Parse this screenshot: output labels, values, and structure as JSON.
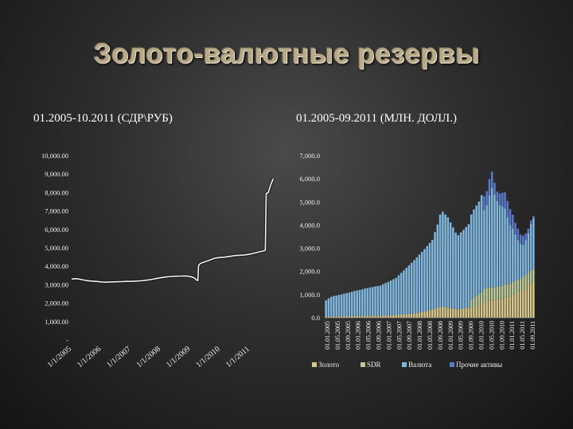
{
  "page": {
    "title": "Золото-валютные резервы"
  },
  "chart_data": [
    {
      "type": "line",
      "title": "01.2005-10.2011 (СДР\\РУБ)",
      "ylim": [
        0,
        10000
      ],
      "y_ticks": [
        "-",
        "1,000.00",
        "2,000.00",
        "3,000.00",
        "4,000.00",
        "5,000.00",
        "6,000.00",
        "7,000.00",
        "8,000.00",
        "9,000.00",
        "10,000.00"
      ],
      "x_tick_labels": [
        "1/1/2005",
        "1/1/2006",
        "1/1/2007",
        "1/1/2008",
        "1/1/2009",
        "1/1/2010",
        "1/1/2011"
      ],
      "x_range": [
        "2005-01-01",
        "2011-10-31"
      ],
      "color": "#f2f2f2",
      "points": [
        [
          "2005-01-01",
          3310
        ],
        [
          "2005-03-01",
          3330
        ],
        [
          "2005-05-01",
          3280
        ],
        [
          "2005-07-01",
          3230
        ],
        [
          "2005-09-01",
          3200
        ],
        [
          "2005-11-01",
          3180
        ],
        [
          "2006-01-01",
          3150
        ],
        [
          "2006-03-01",
          3140
        ],
        [
          "2006-05-01",
          3150
        ],
        [
          "2006-07-01",
          3160
        ],
        [
          "2006-09-01",
          3170
        ],
        [
          "2006-11-01",
          3180
        ],
        [
          "2007-01-01",
          3180
        ],
        [
          "2007-03-01",
          3200
        ],
        [
          "2007-05-01",
          3210
        ],
        [
          "2007-07-01",
          3240
        ],
        [
          "2007-09-01",
          3280
        ],
        [
          "2007-11-01",
          3330
        ],
        [
          "2008-01-01",
          3380
        ],
        [
          "2008-03-01",
          3420
        ],
        [
          "2008-05-01",
          3450
        ],
        [
          "2008-07-01",
          3460
        ],
        [
          "2008-09-01",
          3470
        ],
        [
          "2008-11-01",
          3480
        ],
        [
          "2009-01-01",
          3440
        ],
        [
          "2009-02-15",
          3380
        ],
        [
          "2009-03-15",
          3260
        ],
        [
          "2009-04-01",
          3230
        ],
        [
          "2009-04-10",
          4050
        ],
        [
          "2009-05-01",
          4150
        ],
        [
          "2009-07-01",
          4250
        ],
        [
          "2009-09-01",
          4350
        ],
        [
          "2009-11-01",
          4450
        ],
        [
          "2010-01-01",
          4480
        ],
        [
          "2010-03-01",
          4500
        ],
        [
          "2010-05-01",
          4540
        ],
        [
          "2010-07-01",
          4580
        ],
        [
          "2010-09-01",
          4600
        ],
        [
          "2010-11-01",
          4620
        ],
        [
          "2011-01-01",
          4660
        ],
        [
          "2011-03-01",
          4720
        ],
        [
          "2011-05-01",
          4790
        ],
        [
          "2011-06-15",
          4830
        ],
        [
          "2011-07-10",
          4870
        ],
        [
          "2011-07-20",
          7950
        ],
        [
          "2011-08-15",
          8000
        ],
        [
          "2011-09-15",
          8450
        ],
        [
          "2011-10-15",
          8750
        ]
      ]
    },
    {
      "type": "bar",
      "stacked": true,
      "title": "01.2005-09.2011 (МЛН. ДОЛЛ.)",
      "ylim": [
        0,
        7000
      ],
      "y_ticks": [
        "0.0",
        "1,000.0",
        "2,000.0",
        "3,000.0",
        "4,000.0",
        "5,000.0",
        "6,000.0",
        "7,000.0"
      ],
      "x_tick_labels": [
        "01.01.2005",
        "01.05.2005",
        "01.09.2005",
        "01.01.2006",
        "01.05.2006",
        "01.09.2006",
        "01.01.2007",
        "01.05.2007",
        "01.09.2007",
        "01.01.2008",
        "01.05.2008",
        "01.09.2008",
        "01.01.2009",
        "01.05.2009",
        "01.09.2009",
        "01.01.2010",
        "01.05.2010",
        "01.09.2010",
        "01.01.2011",
        "01.05.2011",
        "01.09.2011"
      ],
      "legend": [
        "Золото",
        "SDR",
        "Валюта",
        "Прочие активы"
      ],
      "legend_position": "bottom",
      "colors": {
        "gold": "#d7c78a",
        "sdr": "#bcc99a",
        "currency": "#7fb6dd",
        "other": "#5a78c9"
      },
      "series_gold": [
        50,
        55,
        55,
        60,
        60,
        60,
        65,
        65,
        70,
        70,
        70,
        75,
        80,
        80,
        80,
        85,
        85,
        90,
        90,
        95,
        95,
        95,
        100,
        100,
        100,
        110,
        115,
        120,
        130,
        140,
        150,
        160,
        170,
        180,
        190,
        210,
        230,
        250,
        270,
        300,
        330,
        360,
        400,
        430,
        460,
        480,
        460,
        440,
        420,
        400,
        380,
        370,
        390,
        400,
        420,
        440,
        460,
        480,
        500,
        520,
        550,
        700,
        720,
        740,
        760,
        780,
        800,
        820,
        850,
        870,
        900,
        950,
        1000,
        1050,
        1100,
        1150,
        1200,
        1300,
        1400,
        1500,
        1550
      ],
      "series_sdr": [
        0,
        0,
        0,
        0,
        0,
        0,
        0,
        0,
        0,
        0,
        0,
        0,
        0,
        0,
        0,
        0,
        0,
        0,
        0,
        0,
        0,
        0,
        0,
        0,
        0,
        0,
        0,
        0,
        0,
        0,
        0,
        0,
        0,
        0,
        0,
        0,
        0,
        0,
        0,
        0,
        0,
        0,
        0,
        0,
        0,
        0,
        0,
        0,
        0,
        0,
        0,
        0,
        0,
        0,
        0,
        0,
        300,
        400,
        450,
        500,
        550,
        550,
        550,
        550,
        550,
        550,
        550,
        550,
        550,
        550,
        550,
        550,
        550,
        550,
        550,
        550,
        550,
        550,
        550,
        550,
        550
      ],
      "series_currency": [
        700,
        780,
        850,
        880,
        900,
        930,
        950,
        980,
        1000,
        1020,
        1050,
        1080,
        1100,
        1120,
        1150,
        1180,
        1200,
        1220,
        1240,
        1260,
        1280,
        1300,
        1350,
        1400,
        1450,
        1500,
        1550,
        1600,
        1700,
        1800,
        1900,
        2000,
        2100,
        2200,
        2300,
        2400,
        2500,
        2600,
        2700,
        2800,
        2900,
        3000,
        3300,
        3600,
        4000,
        4100,
        4000,
        3900,
        3700,
        3500,
        3300,
        3200,
        3300,
        3400,
        3500,
        3600,
        3700,
        3800,
        3900,
        4000,
        4200,
        3400,
        3600,
        4000,
        4300,
        4000,
        3700,
        3500,
        3400,
        3300,
        2900,
        2500,
        2300,
        2000,
        1700,
        1500,
        1400,
        1500,
        1700,
        2000,
        2200
      ],
      "series_other": [
        0,
        0,
        0,
        0,
        0,
        0,
        0,
        0,
        0,
        0,
        0,
        0,
        0,
        0,
        0,
        0,
        0,
        0,
        0,
        0,
        0,
        0,
        0,
        0,
        0,
        0,
        0,
        0,
        0,
        0,
        0,
        0,
        0,
        0,
        0,
        0,
        0,
        0,
        0,
        0,
        0,
        0,
        0,
        0,
        0,
        0,
        0,
        0,
        0,
        0,
        0,
        0,
        0,
        0,
        0,
        0,
        0,
        0,
        0,
        0,
        0,
        600,
        600,
        700,
        700,
        500,
        400,
        500,
        600,
        700,
        700,
        700,
        600,
        500,
        500,
        400,
        400,
        300,
        200,
        150,
        100
      ]
    }
  ]
}
